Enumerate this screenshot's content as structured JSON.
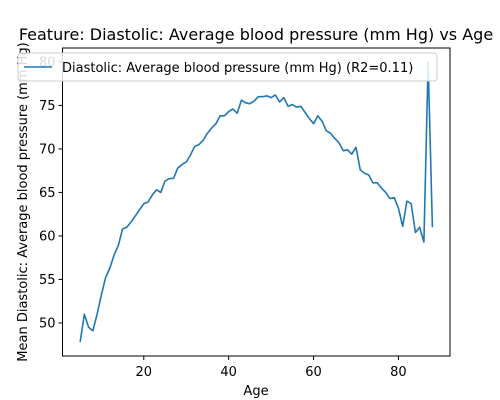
{
  "chart_data": {
    "type": "line",
    "title": "Feature: Diastolic: Average blood pressure (mm Hg) vs Age",
    "xlabel": "Age",
    "ylabel": "Mean Diastolic: Average blood pressure (mm Hg)",
    "xlim": [
      0.85,
      92.15
    ],
    "ylim": [
      46.2,
      81.6
    ],
    "xticks": [
      20,
      40,
      60,
      80
    ],
    "yticks": [
      50,
      55,
      60,
      65,
      70,
      75,
      80
    ],
    "grid": false,
    "legend_position": "top",
    "colors": {
      "series": "#1f77b4"
    },
    "series": [
      {
        "name": "Diastolic: Average blood pressure (mm Hg) (R2=0.11)",
        "x": [
          5,
          6,
          7,
          8,
          9,
          10,
          11,
          12,
          13,
          14,
          15,
          16,
          17,
          18,
          19,
          20,
          21,
          22,
          23,
          24,
          25,
          26,
          27,
          28,
          29,
          30,
          31,
          32,
          33,
          34,
          35,
          36,
          37,
          38,
          39,
          40,
          41,
          42,
          43,
          44,
          45,
          46,
          47,
          48,
          49,
          50,
          51,
          52,
          53,
          54,
          55,
          56,
          57,
          58,
          59,
          60,
          61,
          62,
          63,
          64,
          65,
          66,
          67,
          68,
          69,
          70,
          71,
          72,
          73,
          74,
          75,
          76,
          77,
          78,
          79,
          80,
          81,
          82,
          83,
          84,
          85,
          86,
          87,
          88
        ],
        "y": [
          47.8,
          51.0,
          49.5,
          49.1,
          51.0,
          53.2,
          55.2,
          56.3,
          57.8,
          58.9,
          60.8,
          61.0,
          61.6,
          62.3,
          63.0,
          63.7,
          63.9,
          64.7,
          65.3,
          65.0,
          66.3,
          66.6,
          66.6,
          67.8,
          68.2,
          68.5,
          69.3,
          70.3,
          70.5,
          71.0,
          71.8,
          72.4,
          72.9,
          73.8,
          73.8,
          74.3,
          74.6,
          74.1,
          75.6,
          75.3,
          75.2,
          75.5,
          76.0,
          76.0,
          76.1,
          75.9,
          76.2,
          75.4,
          75.9,
          74.9,
          75.1,
          74.8,
          74.9,
          74.2,
          73.5,
          72.9,
          73.8,
          73.2,
          72.1,
          71.8,
          71.2,
          70.7,
          69.8,
          69.9,
          69.4,
          70.2,
          67.6,
          67.2,
          67.0,
          66.1,
          66.1,
          65.5,
          65.0,
          64.3,
          64.4,
          63.2,
          61.1,
          64.0,
          63.7,
          60.4,
          61.0,
          59.3,
          80.0,
          61.0
        ]
      }
    ]
  }
}
